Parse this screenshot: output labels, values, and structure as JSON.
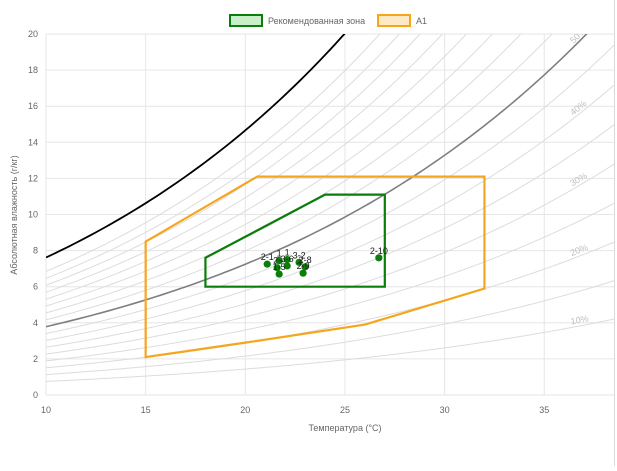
{
  "chart_data": {
    "type": "scatter",
    "xlabel": "Температура (°C)",
    "ylabel": "Абсолютная влажность (г/кг)",
    "xlim": [
      10,
      38.5
    ],
    "ylim": [
      0,
      20
    ],
    "x_ticks": [
      10,
      15,
      20,
      25,
      30,
      35
    ],
    "y_ticks": [
      0,
      2,
      4,
      6,
      8,
      10,
      12,
      14,
      16,
      18,
      20
    ],
    "grid": true,
    "legend_position": "top-center",
    "legend": [
      {
        "label": "Рекомендованная зона",
        "color": "#0a7d0a",
        "fill": "#c8f0c8"
      },
      {
        "label": "A1",
        "color": "#f5a61d",
        "fill": "#fde9c4"
      }
    ],
    "rh_labels": [
      {
        "text": "10%",
        "rh": 0.1
      },
      {
        "text": "20%",
        "rh": 0.2
      },
      {
        "text": "30%",
        "rh": 0.3
      },
      {
        "text": "40%",
        "rh": 0.4
      },
      {
        "text": "50%",
        "rh": 0.5
      }
    ],
    "rh_curves": [
      0.1,
      0.15,
      0.2,
      0.25,
      0.3,
      0.35,
      0.4,
      0.45,
      0.5,
      0.55,
      0.6,
      0.65,
      0.7,
      0.75,
      0.8,
      0.85,
      0.9
    ],
    "highlight_curves": [
      {
        "rh": 0.5,
        "color": "#7f7f7f",
        "width": 1.6
      },
      {
        "rh": 1.0,
        "color": "#000000",
        "width": 1.8
      }
    ],
    "zones": [
      {
        "name": "A1",
        "color": "#f5a61d",
        "width": 2.2,
        "points": [
          [
            15,
            2.1
          ],
          [
            15,
            8.5
          ],
          [
            20.6,
            12.1
          ],
          [
            32,
            12.1
          ],
          [
            32,
            5.9
          ],
          [
            26,
            3.9
          ],
          [
            20,
            2.9
          ]
        ]
      },
      {
        "name": "Рекомендованная зона",
        "color": "#0a7d0a",
        "width": 2.2,
        "points": [
          [
            18,
            6.0
          ],
          [
            18,
            7.6
          ],
          [
            24,
            11.1
          ],
          [
            27,
            11.1
          ],
          [
            27,
            6.0
          ]
        ]
      }
    ],
    "points": [
      {
        "label": "2-1",
        "x": 21.1,
        "y": 7.25
      },
      {
        "label": "1",
        "x": 21.7,
        "y": 7.45
      },
      {
        "label": "1",
        "x": 22.1,
        "y": 7.5
      },
      {
        "label": "2-",
        "x": 21.6,
        "y": 7.05
      },
      {
        "label": "3-2",
        "x": 22.7,
        "y": 7.35
      },
      {
        "label": "3-6",
        "x": 22.1,
        "y": 7.15
      },
      {
        "label": "2-8",
        "x": 23.0,
        "y": 7.1
      },
      {
        "label": "1-5",
        "x": 21.7,
        "y": 6.7
      },
      {
        "label": "2-9",
        "x": 22.9,
        "y": 6.75
      },
      {
        "label": "2-10",
        "x": 26.7,
        "y": 7.6
      }
    ],
    "point_color": "#0a7d0a"
  }
}
